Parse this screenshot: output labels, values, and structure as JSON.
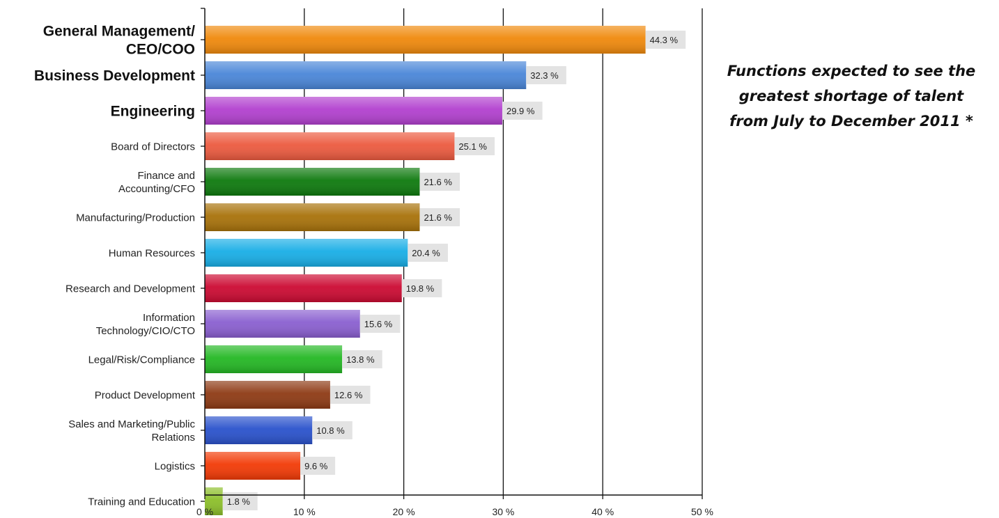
{
  "title": "Functions expected to see the\ngreatest shortage of talent\nfrom July to December 2011 *",
  "chart_data": {
    "type": "bar",
    "orientation": "horizontal",
    "title": "Functions expected to see the greatest shortage of talent from July to December 2011 *",
    "xlabel": "",
    "ylabel": "",
    "xlim": [
      0,
      50
    ],
    "x_ticks": [
      "0 %",
      "10 %",
      "20 %",
      "30 %",
      "40 %",
      "50 %"
    ],
    "grid": "vertical",
    "categories": [
      {
        "lines": [
          "General Management/",
          "CEO/COO"
        ],
        "bold": true
      },
      {
        "lines": [
          "Business Development"
        ],
        "bold": true
      },
      {
        "lines": [
          "Engineering"
        ],
        "bold": true
      },
      {
        "lines": [
          "Board of Directors"
        ],
        "bold": false
      },
      {
        "lines": [
          "Finance and",
          "Accounting/CFO"
        ],
        "bold": false
      },
      {
        "lines": [
          "Manufacturing/Production"
        ],
        "bold": false
      },
      {
        "lines": [
          "Human Resources"
        ],
        "bold": false
      },
      {
        "lines": [
          "Research and Development"
        ],
        "bold": false
      },
      {
        "lines": [
          "Information",
          "Technology/CIO/CTO"
        ],
        "bold": false
      },
      {
        "lines": [
          "Legal/Risk/Compliance"
        ],
        "bold": false
      },
      {
        "lines": [
          "Product Development"
        ],
        "bold": false
      },
      {
        "lines": [
          "Sales and Marketing/Public",
          "Relations"
        ],
        "bold": false
      },
      {
        "lines": [
          "Logistics"
        ],
        "bold": false
      },
      {
        "lines": [
          "Training and Education"
        ],
        "bold": false
      }
    ],
    "values": [
      44.3,
      32.3,
      29.9,
      25.1,
      21.6,
      21.6,
      20.4,
      19.8,
      15.6,
      13.8,
      12.6,
      10.8,
      9.6,
      1.8
    ],
    "value_labels": [
      "44.3 %",
      "32.3 %",
      "29.9 %",
      "25.1 %",
      "21.6 %",
      "21.6 %",
      "20.4 %",
      "19.8 %",
      "15.6 %",
      "13.8 %",
      "12.6 %",
      "10.8 %",
      "9.6 %",
      "1.8 %"
    ],
    "colors": [
      "#f0890c",
      "#4a86d8",
      "#b240cf",
      "#ec5a3f",
      "#0e7a0e",
      "#a8720a",
      "#18aee6",
      "#cc0a32",
      "#8a5fd0",
      "#24b824",
      "#8e3a14",
      "#2a52cc",
      "#f23a06",
      "#8cbf2a"
    ]
  }
}
